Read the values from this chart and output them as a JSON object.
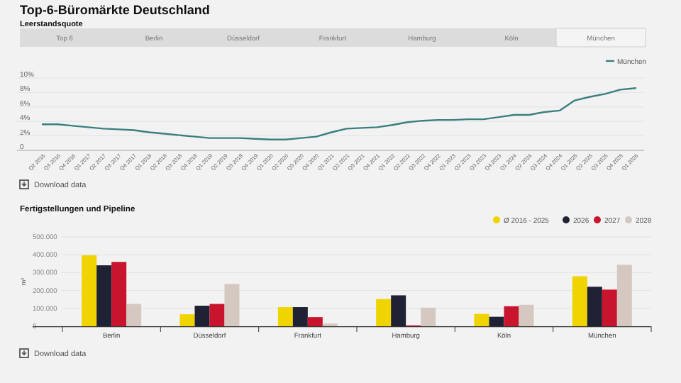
{
  "chart_data": [
    {
      "type": "line",
      "title": "Top-6-Büromärkte Deutschland",
      "subtitle": "Leerstandsquote",
      "annotations": [
        "Top 6",
        "Berlin",
        "Düsseldorf",
        "Frankfurt",
        "Hamburg",
        "Köln",
        "München",
        "Download data"
      ],
      "categories": [
        "Q2 2016",
        "Q3 2016",
        "Q4 2016",
        "Q1 2017",
        "Q2 2017",
        "Q3 2017",
        "Q4 2017",
        "Q1 2018",
        "Q2 2018",
        "Q3 2018",
        "Q4 2018",
        "Q1 2019",
        "Q2 2019",
        "Q3 2019",
        "Q4 2019",
        "Q1 2020",
        "Q2 2020",
        "Q3 2020",
        "Q4 2020",
        "Q1 2021",
        "Q2 2021",
        "Q3 2021",
        "Q4 2021",
        "Q1 2022",
        "Q2 2022",
        "Q3 2022",
        "Q4 2022",
        "Q1 2023",
        "Q2 2023",
        "Q3 2023",
        "Q4 2023",
        "Q1 2024",
        "Q2 2024",
        "Q3 2024",
        "Q4 2024",
        "Q1 2025",
        "Q2 2025",
        "Q3 2025",
        "Q4 2025",
        "Q1 2026"
      ],
      "series": [
        {
          "name": "München",
          "color": "#3a7f80",
          "values": [
            3.6,
            3.6,
            3.4,
            3.2,
            3.0,
            2.9,
            2.8,
            2.5,
            2.3,
            2.1,
            1.9,
            1.7,
            1.7,
            1.7,
            1.6,
            1.5,
            1.5,
            1.7,
            1.9,
            2.5,
            3.0,
            3.1,
            3.2,
            3.5,
            3.9,
            4.1,
            4.2,
            4.2,
            4.3,
            4.3,
            4.6,
            4.9,
            4.9,
            5.3,
            5.5,
            6.9,
            7.4,
            7.8,
            8.4,
            8.6
          ]
        }
      ],
      "ylim": [
        0,
        10
      ],
      "yticks": [
        0,
        {
          "value": 2,
          "label": "2%"
        },
        {
          "value": 4,
          "label": "4%"
        },
        {
          "value": 6,
          "label": "6%"
        },
        {
          "value": 8,
          "label": "8%"
        },
        {
          "value": 10,
          "label": "10%"
        }
      ],
      "grid": "y",
      "legend": "top right"
    },
    {
      "type": "bar",
      "title": "Fertigstellungen und Pipeline",
      "ylabel": "m²",
      "annotations": [
        "Download data"
      ],
      "categories": [
        "Berlin",
        "Düsseldorf",
        "Frankfurt",
        "Hamburg",
        "Köln",
        "München"
      ],
      "series": [
        {
          "name": "Ø 2016 - 2025",
          "color": "#f0d400",
          "values": [
            397000,
            67000,
            107000,
            152000,
            69000,
            280000
          ]
        },
        {
          "name": "2026",
          "color": "#1f2235",
          "values": [
            341000,
            115000,
            107000,
            173000,
            53000,
            221000
          ]
        },
        {
          "name": "2027",
          "color": "#c8142c",
          "values": [
            360000,
            125000,
            51000,
            5000,
            112000,
            205000
          ]
        },
        {
          "name": "2028",
          "color": "#d4c8c0",
          "values": [
            125000,
            237000,
            15000,
            104000,
            120000,
            344000
          ]
        }
      ],
      "ylim": [
        0,
        500000
      ],
      "yticks": [
        {
          "value": 0,
          "label": "0"
        },
        {
          "value": 100000,
          "label": "100.000"
        },
        {
          "value": 200000,
          "label": "200.000"
        },
        {
          "value": 300000,
          "label": "300.000"
        },
        {
          "value": 400000,
          "label": "400.000"
        },
        {
          "value": 500000,
          "label": "500.000"
        }
      ],
      "grid": "y",
      "legend": "top right"
    }
  ]
}
